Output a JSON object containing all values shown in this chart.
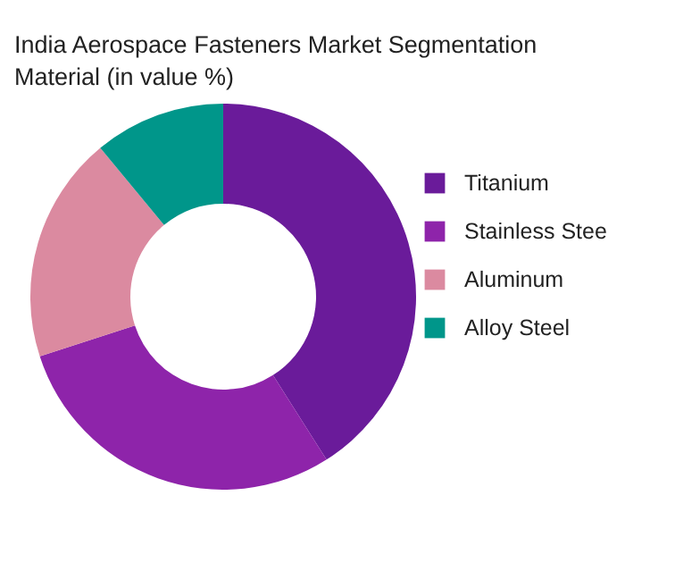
{
  "chart_data": {
    "type": "donut",
    "title": "India Aerospace Fasteners Market  Segmentation Material (in value %)",
    "categories": [
      "Titanium",
      "Stainless Stee",
      "Aluminum",
      "Alloy Steel"
    ],
    "values": [
      41,
      29,
      19,
      11
    ],
    "colors": [
      "#6a1b9a",
      "#8e24aa",
      "#db8aa0",
      "#00968a"
    ],
    "legend": "right"
  }
}
